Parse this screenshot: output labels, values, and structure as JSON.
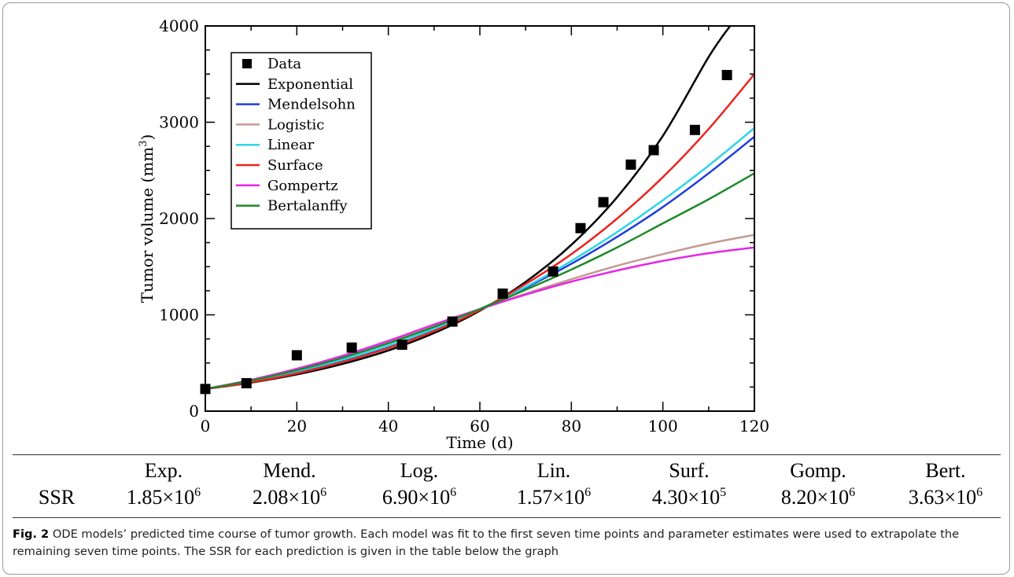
{
  "figure": {
    "label": "Fig. 2",
    "caption": "ODE models’ predicted time course of tumor growth. Each model was fit to the first seven time points and parameter estimates were used to extrapolate the remaining seven time points. The SSR for each prediction is given in the table below the graph"
  },
  "chart_data": {
    "type": "line",
    "title": "",
    "xlabel": "Time (d)",
    "ylabel": "Tumor volume (mm",
    "ylabel_sup": "3",
    "ylabel_end": ")",
    "xlim": [
      0,
      120
    ],
    "ylim": [
      0,
      4000
    ],
    "xticks": [
      0,
      20,
      40,
      60,
      80,
      100,
      120
    ],
    "yticks": [
      0,
      1000,
      2000,
      3000,
      4000
    ],
    "legend_position": "top-left",
    "data_points": {
      "name": "Data",
      "x": [
        0,
        9,
        20,
        32,
        43,
        54,
        65,
        76,
        82,
        87,
        93,
        98,
        107,
        114
      ],
      "y": [
        230,
        290,
        580,
        660,
        690,
        930,
        1220,
        1450,
        1900,
        2170,
        2560,
        2710,
        2920,
        3490
      ]
    },
    "series": [
      {
        "name": "Exponential",
        "color": "#000000",
        "x": [
          0,
          10,
          20,
          30,
          40,
          50,
          60,
          70,
          80,
          90,
          100,
          110,
          115
        ],
        "y": [
          230,
          296,
          381,
          490,
          630,
          811,
          1043,
          1342,
          1727,
          2222,
          2859,
          3678,
          4020
        ]
      },
      {
        "name": "Mendelsohn",
        "color": "#1f3fd9",
        "x": [
          0,
          10,
          20,
          30,
          40,
          50,
          60,
          70,
          80,
          90,
          100,
          110,
          120
        ],
        "y": [
          230,
          310,
          410,
          530,
          670,
          850,
          1050,
          1280,
          1530,
          1810,
          2120,
          2470,
          2850
        ]
      },
      {
        "name": "Logistic",
        "color": "#c49a90",
        "x": [
          0,
          10,
          20,
          30,
          40,
          50,
          60,
          70,
          80,
          90,
          100,
          110,
          120
        ],
        "y": [
          230,
          320,
          430,
          560,
          720,
          890,
          1060,
          1220,
          1370,
          1510,
          1630,
          1740,
          1830
        ]
      },
      {
        "name": "Linear",
        "color": "#2fd5e8",
        "x": [
          0,
          10,
          20,
          30,
          40,
          50,
          60,
          70,
          80,
          90,
          100,
          110,
          120
        ],
        "y": [
          230,
          315,
          415,
          535,
          680,
          855,
          1060,
          1290,
          1560,
          1860,
          2190,
          2550,
          2940
        ]
      },
      {
        "name": "Surface",
        "color": "#e8261f",
        "x": [
          0,
          10,
          20,
          30,
          40,
          50,
          60,
          70,
          80,
          90,
          100,
          110,
          120
        ],
        "y": [
          230,
          300,
          392,
          510,
          655,
          830,
          1050,
          1320,
          1630,
          2000,
          2430,
          2930,
          3500
        ]
      },
      {
        "name": "Gompertz",
        "color": "#e626e6",
        "x": [
          0,
          10,
          20,
          30,
          40,
          50,
          60,
          70,
          80,
          90,
          100,
          110,
          120
        ],
        "y": [
          230,
          325,
          440,
          575,
          730,
          900,
          1060,
          1210,
          1345,
          1460,
          1560,
          1640,
          1700
        ]
      },
      {
        "name": "Bertalanffy",
        "color": "#1d8a2a",
        "x": [
          0,
          10,
          20,
          30,
          40,
          50,
          60,
          70,
          80,
          90,
          100,
          110,
          120
        ],
        "y": [
          230,
          318,
          425,
          555,
          705,
          875,
          1060,
          1260,
          1470,
          1700,
          1950,
          2200,
          2470
        ]
      }
    ]
  },
  "ssr_table": {
    "row_label": "SSR",
    "columns": [
      {
        "name": "Exp.",
        "mantissa": "1.85×10",
        "exponent": "6"
      },
      {
        "name": "Mend.",
        "mantissa": "2.08×10",
        "exponent": "6"
      },
      {
        "name": "Log.",
        "mantissa": "6.90×10",
        "exponent": "6"
      },
      {
        "name": "Lin.",
        "mantissa": "1.57×10",
        "exponent": "6"
      },
      {
        "name": "Surf.",
        "mantissa": "4.30×10",
        "exponent": "5"
      },
      {
        "name": "Gomp.",
        "mantissa": "8.20×10",
        "exponent": "6"
      },
      {
        "name": "Bert.",
        "mantissa": "3.63×10",
        "exponent": "6"
      }
    ]
  }
}
